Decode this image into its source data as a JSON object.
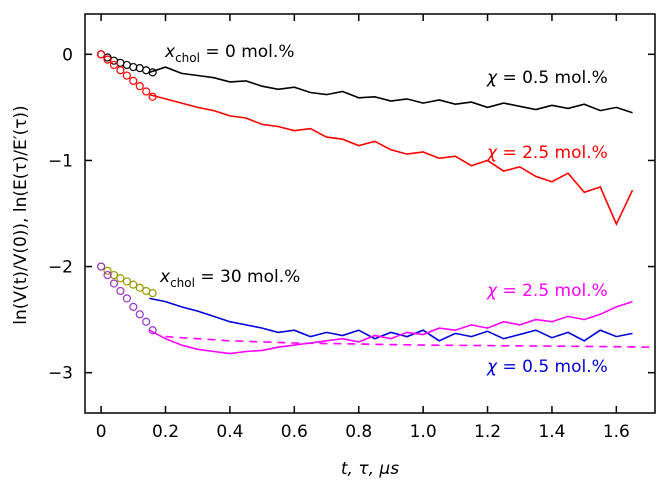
{
  "chart_data": {
    "type": "line",
    "xlabel": "t, τ, μs",
    "ylabel": "ln(V(t)/V(0)), ln(E(τ)/E′(τ))",
    "xlim": [
      -0.05,
      1.72
    ],
    "ylim": [
      -3.38,
      0.38
    ],
    "xticks": [
      {
        "value": 0,
        "label": "0"
      },
      0.2,
      0.4,
      0.6,
      0.8,
      {
        "value": 1,
        "label": "1.0"
      },
      1.2,
      1.4,
      1.6
    ],
    "yticks": [
      0,
      {
        "value": -1,
        "label": "−1"
      },
      {
        "value": -2,
        "label": "−2"
      },
      {
        "value": -3,
        "label": "−3"
      }
    ],
    "series": [
      {
        "style": "markers",
        "color": "#000000",
        "x": [
          0,
          0.02,
          0.04,
          0.06,
          0.08,
          0.1,
          0.12,
          0.14,
          0.16
        ],
        "values": [
          0,
          -0.03,
          -0.06,
          -0.08,
          -0.1,
          -0.12,
          -0.13,
          -0.15,
          -0.17
        ]
      },
      {
        "style": "line",
        "color": "#000000",
        "x": [
          0.15,
          0.2,
          0.25,
          0.3,
          0.35,
          0.4,
          0.45,
          0.5,
          0.55,
          0.6,
          0.65,
          0.7,
          0.75,
          0.8,
          0.85,
          0.9,
          0.95,
          1.0,
          1.05,
          1.1,
          1.15,
          1.2,
          1.25,
          1.3,
          1.35,
          1.4,
          1.45,
          1.5,
          1.55,
          1.6,
          1.65
        ],
        "values": [
          -0.17,
          -0.12,
          -0.18,
          -0.2,
          -0.22,
          -0.26,
          -0.25,
          -0.3,
          -0.33,
          -0.31,
          -0.36,
          -0.38,
          -0.35,
          -0.41,
          -0.4,
          -0.44,
          -0.42,
          -0.46,
          -0.43,
          -0.47,
          -0.45,
          -0.5,
          -0.46,
          -0.49,
          -0.52,
          -0.48,
          -0.51,
          -0.47,
          -0.53,
          -0.5,
          -0.55
        ]
      },
      {
        "style": "markers",
        "color": "#ff0000",
        "x": [
          0,
          0.02,
          0.04,
          0.06,
          0.08,
          0.1,
          0.12,
          0.14,
          0.16
        ],
        "values": [
          0,
          -0.05,
          -0.1,
          -0.15,
          -0.2,
          -0.25,
          -0.3,
          -0.35,
          -0.4
        ]
      },
      {
        "style": "line",
        "color": "#ff0000",
        "x": [
          0.15,
          0.2,
          0.25,
          0.3,
          0.35,
          0.4,
          0.45,
          0.5,
          0.55,
          0.6,
          0.65,
          0.7,
          0.75,
          0.8,
          0.85,
          0.9,
          0.95,
          1.0,
          1.05,
          1.1,
          1.15,
          1.2,
          1.25,
          1.3,
          1.35,
          1.4,
          1.45,
          1.5,
          1.55,
          1.6,
          1.65
        ],
        "values": [
          -0.38,
          -0.42,
          -0.46,
          -0.5,
          -0.53,
          -0.58,
          -0.6,
          -0.66,
          -0.68,
          -0.72,
          -0.7,
          -0.78,
          -0.8,
          -0.86,
          -0.82,
          -0.9,
          -0.94,
          -0.92,
          -0.98,
          -0.96,
          -1.05,
          -1.0,
          -1.1,
          -1.06,
          -1.15,
          -1.2,
          -1.12,
          -1.3,
          -1.25,
          -1.6,
          -1.28
        ]
      },
      {
        "style": "markers",
        "color": "#999900",
        "x": [
          0,
          0.02,
          0.04,
          0.06,
          0.08,
          0.1,
          0.12,
          0.14,
          0.16
        ],
        "values": [
          -2,
          -2.04,
          -2.08,
          -2.11,
          -2.14,
          -2.17,
          -2.2,
          -2.23,
          -2.25
        ]
      },
      {
        "style": "markers",
        "color": "#9933cc",
        "x": [
          0,
          0.02,
          0.04,
          0.06,
          0.08,
          0.1,
          0.12,
          0.14,
          0.16
        ],
        "values": [
          -2,
          -2.08,
          -2.16,
          -2.23,
          -2.3,
          -2.38,
          -2.45,
          -2.52,
          -2.6
        ]
      },
      {
        "style": "line",
        "color": "#0000dd",
        "x": [
          0.15,
          0.2,
          0.25,
          0.3,
          0.35,
          0.4,
          0.45,
          0.5,
          0.55,
          0.6,
          0.65,
          0.7,
          0.75,
          0.8,
          0.85,
          0.9,
          0.95,
          1.0,
          1.05,
          1.1,
          1.15,
          1.2,
          1.25,
          1.3,
          1.35,
          1.4,
          1.45,
          1.5,
          1.55,
          1.6,
          1.65
        ],
        "values": [
          -2.3,
          -2.33,
          -2.38,
          -2.42,
          -2.47,
          -2.52,
          -2.55,
          -2.58,
          -2.62,
          -2.6,
          -2.66,
          -2.62,
          -2.65,
          -2.6,
          -2.68,
          -2.62,
          -2.66,
          -2.6,
          -2.7,
          -2.63,
          -2.66,
          -2.61,
          -2.68,
          -2.64,
          -2.6,
          -2.67,
          -2.62,
          -2.7,
          -2.6,
          -2.66,
          -2.63
        ]
      },
      {
        "style": "line",
        "color": "#ff00ff",
        "x": [
          0.15,
          0.2,
          0.25,
          0.3,
          0.35,
          0.4,
          0.45,
          0.5,
          0.55,
          0.6,
          0.65,
          0.7,
          0.75,
          0.8,
          0.85,
          0.9,
          0.95,
          1.0,
          1.05,
          1.1,
          1.15,
          1.2,
          1.25,
          1.3,
          1.35,
          1.4,
          1.45,
          1.5,
          1.55,
          1.6,
          1.65
        ],
        "values": [
          -2.6,
          -2.68,
          -2.74,
          -2.78,
          -2.8,
          -2.82,
          -2.8,
          -2.79,
          -2.76,
          -2.74,
          -2.72,
          -2.7,
          -2.68,
          -2.71,
          -2.65,
          -2.68,
          -2.62,
          -2.64,
          -2.58,
          -2.6,
          -2.55,
          -2.58,
          -2.52,
          -2.55,
          -2.5,
          -2.52,
          -2.47,
          -2.5,
          -2.45,
          -2.38,
          -2.33
        ]
      },
      {
        "style": "dashed",
        "color": "#ff00ff",
        "x": [
          0.2,
          0.4,
          0.6,
          0.8,
          1.0,
          1.2,
          1.4,
          1.6,
          1.72
        ],
        "values": [
          -2.66,
          -2.7,
          -2.72,
          -2.73,
          -2.74,
          -2.745,
          -2.75,
          -2.755,
          -2.76
        ]
      }
    ],
    "annotations": [
      {
        "var": "x",
        "sub": "chol",
        "text": " = 0 mol.%",
        "color": "#000000"
      },
      {
        "var": "χ",
        "text": " = 0.5 mol.%",
        "color": "#000000"
      },
      {
        "var": "χ",
        "text": " = 2.5 mol.%",
        "color": "#ff0000"
      },
      {
        "var": "x",
        "sub": "chol",
        "text": " = 30 mol.%",
        "color": "#000000"
      },
      {
        "var": "χ",
        "text": " = 2.5 mol.%",
        "color": "#ff00ff"
      },
      {
        "var": "χ",
        "text": " = 0.5 mol.%",
        "color": "#0000dd"
      }
    ]
  }
}
